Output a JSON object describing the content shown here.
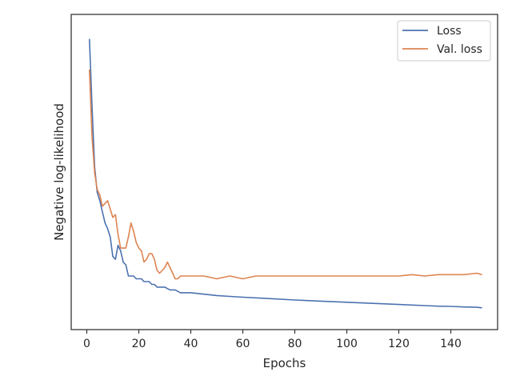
{
  "chart_data": {
    "type": "line",
    "xlabel": "Epochs",
    "ylabel": "Negative log-likelihood",
    "xlim": [
      -6,
      158
    ],
    "ylim": [
      0,
      1
    ],
    "y_ticks_shown": false,
    "x_ticks": [
      0,
      20,
      40,
      60,
      80,
      100,
      120,
      140
    ],
    "grid": false,
    "legend": "top-right",
    "series": [
      {
        "name": "Loss",
        "color": "#4c72b0",
        "x": [
          1,
          2,
          3,
          4,
          5,
          6,
          7,
          8,
          9,
          10,
          11,
          12,
          13,
          14,
          15,
          16,
          17,
          18,
          19,
          20,
          21,
          22,
          23,
          24,
          25,
          26,
          27,
          28,
          29,
          30,
          32,
          34,
          36,
          38,
          40,
          45,
          50,
          55,
          60,
          70,
          80,
          90,
          100,
          110,
          120,
          125,
          130,
          135,
          140,
          145,
          150,
          152
        ],
        "y": [
          0.98,
          0.74,
          0.52,
          0.43,
          0.4,
          0.36,
          0.32,
          0.3,
          0.27,
          0.2,
          0.19,
          0.24,
          0.22,
          0.18,
          0.17,
          0.13,
          0.13,
          0.13,
          0.12,
          0.12,
          0.12,
          0.11,
          0.11,
          0.11,
          0.1,
          0.1,
          0.09,
          0.09,
          0.09,
          0.09,
          0.08,
          0.08,
          0.07,
          0.07,
          0.07,
          0.065,
          0.06,
          0.057,
          0.054,
          0.049,
          0.044,
          0.04,
          0.036,
          0.032,
          0.028,
          0.026,
          0.024,
          0.022,
          0.021,
          0.019,
          0.018,
          0.016
        ]
      },
      {
        "name": "Val. loss",
        "color": "#dd8452",
        "x": [
          1,
          2,
          3,
          4,
          5,
          6,
          7,
          8,
          9,
          10,
          11,
          12,
          13,
          14,
          15,
          16,
          17,
          18,
          19,
          20,
          21,
          22,
          23,
          24,
          25,
          26,
          27,
          28,
          29,
          30,
          31,
          32,
          33,
          34,
          35,
          36,
          38,
          40,
          45,
          50,
          55,
          60,
          65,
          70,
          80,
          90,
          100,
          110,
          120,
          125,
          130,
          135,
          140,
          145,
          150,
          152
        ],
        "y": [
          0.87,
          0.63,
          0.5,
          0.44,
          0.42,
          0.38,
          0.39,
          0.4,
          0.37,
          0.34,
          0.35,
          0.28,
          0.23,
          0.23,
          0.23,
          0.27,
          0.32,
          0.29,
          0.25,
          0.23,
          0.22,
          0.18,
          0.19,
          0.21,
          0.21,
          0.19,
          0.15,
          0.14,
          0.15,
          0.16,
          0.18,
          0.16,
          0.14,
          0.12,
          0.12,
          0.13,
          0.13,
          0.13,
          0.13,
          0.12,
          0.13,
          0.12,
          0.13,
          0.13,
          0.13,
          0.13,
          0.13,
          0.13,
          0.13,
          0.135,
          0.13,
          0.135,
          0.135,
          0.135,
          0.14,
          0.135
        ]
      }
    ]
  }
}
